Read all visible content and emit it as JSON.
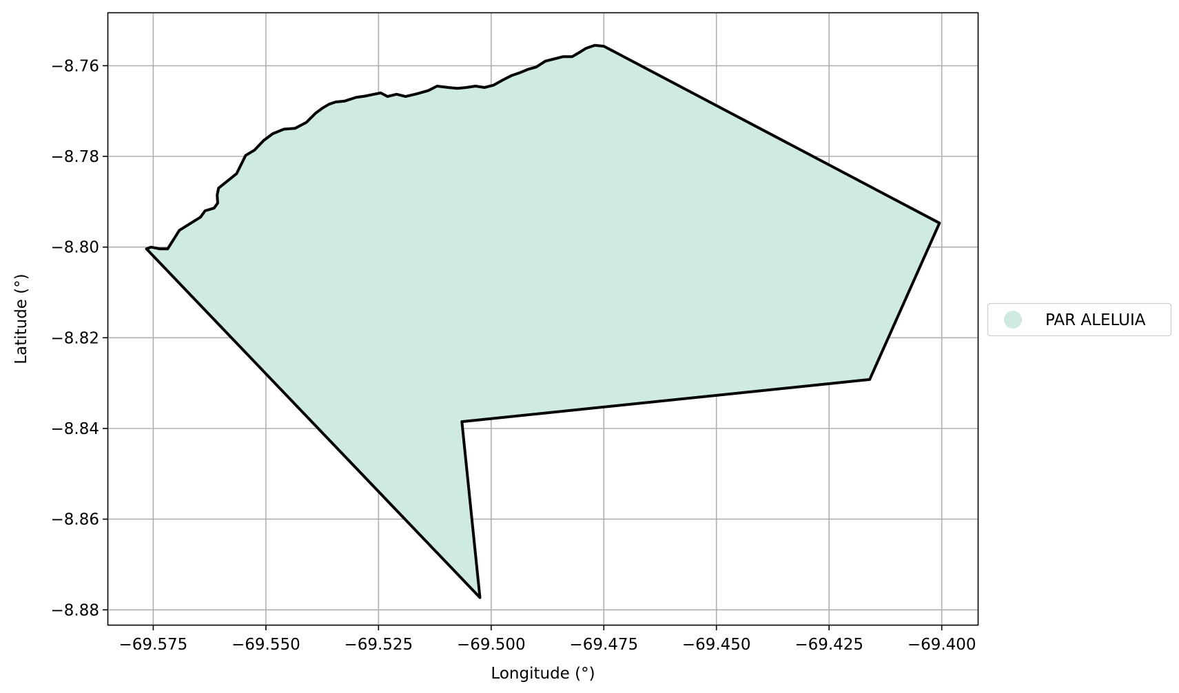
{
  "chart_data": {
    "type": "map",
    "xlabel": "Longitude (°)",
    "ylabel": "Latitude (°)",
    "xlim": [
      -69.585,
      -69.392
    ],
    "ylim": [
      -8.8833,
      -8.7484
    ],
    "xticks": [
      -69.575,
      -69.55,
      -69.525,
      -69.5,
      -69.475,
      -69.45,
      -69.425,
      -69.4
    ],
    "xtick_labels": [
      "−69.575",
      "−69.550",
      "−69.525",
      "−69.500",
      "−69.475",
      "−69.450",
      "−69.425",
      "−69.400"
    ],
    "yticks": [
      -8.76,
      -8.78,
      -8.8,
      -8.82,
      -8.84,
      -8.86,
      -8.88
    ],
    "ytick_labels": [
      "−8.76",
      "−8.78",
      "−8.80",
      "−8.82",
      "−8.84",
      "−8.86",
      "−8.88"
    ],
    "grid": true,
    "legend_position": "right",
    "series": [
      {
        "name": "PAR ALELUIA",
        "fill_color": "#cfeadf",
        "edge_color": "#000000",
        "polygon": [
          [
            -69.5765,
            -8.8004
          ],
          [
            -69.5755,
            -8.8
          ],
          [
            -69.5735,
            -8.8004
          ],
          [
            -69.5718,
            -8.8004
          ],
          [
            -69.5692,
            -8.7963
          ],
          [
            -69.5645,
            -8.7934
          ],
          [
            -69.5635,
            -8.792
          ],
          [
            -69.5615,
            -8.7914
          ],
          [
            -69.5607,
            -8.7903
          ],
          [
            -69.5608,
            -8.7885
          ],
          [
            -69.5605,
            -8.787
          ],
          [
            -69.5585,
            -8.7854
          ],
          [
            -69.5565,
            -8.7838
          ],
          [
            -69.5555,
            -8.7818
          ],
          [
            -69.5545,
            -8.7798
          ],
          [
            -69.5525,
            -8.7786
          ],
          [
            -69.5505,
            -8.7765
          ],
          [
            -69.5485,
            -8.775
          ],
          [
            -69.546,
            -8.774
          ],
          [
            -69.5435,
            -8.7738
          ],
          [
            -69.541,
            -8.7725
          ],
          [
            -69.539,
            -8.7705
          ],
          [
            -69.5375,
            -8.7694
          ],
          [
            -69.536,
            -8.7685
          ],
          [
            -69.5345,
            -8.768
          ],
          [
            -69.5325,
            -8.7678
          ],
          [
            -69.53,
            -8.767
          ],
          [
            -69.528,
            -8.7667
          ],
          [
            -69.526,
            -8.7663
          ],
          [
            -69.5245,
            -8.766
          ],
          [
            -69.523,
            -8.7668
          ],
          [
            -69.521,
            -8.7663
          ],
          [
            -69.519,
            -8.7668
          ],
          [
            -69.5165,
            -8.7662
          ],
          [
            -69.514,
            -8.7655
          ],
          [
            -69.512,
            -8.7645
          ],
          [
            -69.5095,
            -8.7648
          ],
          [
            -69.5075,
            -8.765
          ],
          [
            -69.5055,
            -8.7648
          ],
          [
            -69.5035,
            -8.7645
          ],
          [
            -69.5015,
            -8.7648
          ],
          [
            -69.4995,
            -8.7643
          ],
          [
            -69.4975,
            -8.7632
          ],
          [
            -69.4955,
            -8.7622
          ],
          [
            -69.4935,
            -8.7615
          ],
          [
            -69.4918,
            -8.7608
          ],
          [
            -69.49,
            -8.7603
          ],
          [
            -69.488,
            -8.759
          ],
          [
            -69.486,
            -8.7585
          ],
          [
            -69.484,
            -8.758
          ],
          [
            -69.482,
            -8.758
          ],
          [
            -69.4803,
            -8.757
          ],
          [
            -69.479,
            -8.7562
          ],
          [
            -69.477,
            -8.7555
          ],
          [
            -69.475,
            -8.7557
          ],
          [
            -69.4005,
            -8.7947
          ],
          [
            -69.416,
            -8.8292
          ],
          [
            -69.5065,
            -8.8385
          ],
          [
            -69.5025,
            -8.8773
          ],
          [
            -69.5765,
            -8.8004
          ]
        ]
      }
    ]
  }
}
